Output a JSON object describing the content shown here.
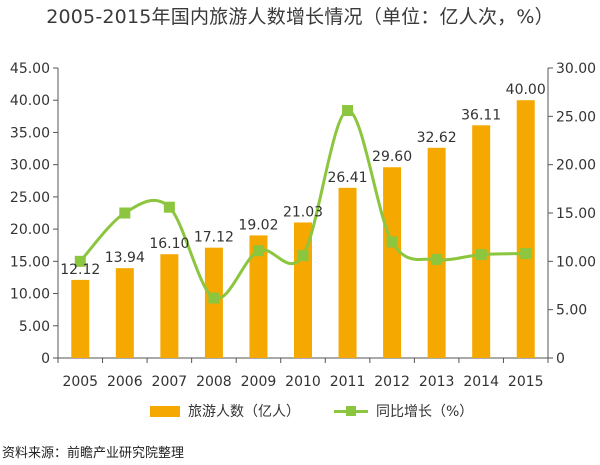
{
  "title": "2005-2015年国内旅游人数增长情况（单位：亿人次，%）",
  "source": "资料来源：前瞻产业研究院整理",
  "colors": {
    "bar": "#F5A800",
    "line": "#8CC63F",
    "axis": "#555555",
    "text": "#333333"
  },
  "chart_data": {
    "type": "bar",
    "title": "2005-2015年国内旅游人数增长情况（单位：亿人次，%）",
    "categories": [
      "2005",
      "2006",
      "2007",
      "2008",
      "2009",
      "2010",
      "2011",
      "2012",
      "2013",
      "2014",
      "2015"
    ],
    "series": [
      {
        "name": "旅游人数（亿人）",
        "type": "bar",
        "axis": "left",
        "values": [
          12.12,
          13.94,
          16.1,
          17.12,
          19.02,
          21.03,
          26.41,
          29.6,
          32.62,
          36.11,
          40.0
        ],
        "labels": [
          "12.12",
          "13.94",
          "16.10",
          "17.12",
          "19.02",
          "21.03",
          "26.41",
          "29.60",
          "32.62",
          "36.11",
          "40.00"
        ]
      },
      {
        "name": "同比增长（%）",
        "type": "line",
        "axis": "right",
        "values": [
          10.0,
          15.0,
          15.6,
          6.2,
          11.1,
          10.6,
          25.6,
          12.0,
          10.2,
          10.7,
          10.8
        ]
      }
    ],
    "y_left": {
      "min": 0,
      "max": 45,
      "ticks": [
        "0",
        "5.00",
        "10.00",
        "15.00",
        "20.00",
        "25.00",
        "30.00",
        "35.00",
        "40.00",
        "45.00"
      ]
    },
    "y_right": {
      "min": 0,
      "max": 30,
      "ticks": [
        "0",
        "5.00",
        "10.00",
        "15.00",
        "20.00",
        "25.00",
        "30.00"
      ]
    },
    "grid": false,
    "legend_position": "bottom"
  }
}
